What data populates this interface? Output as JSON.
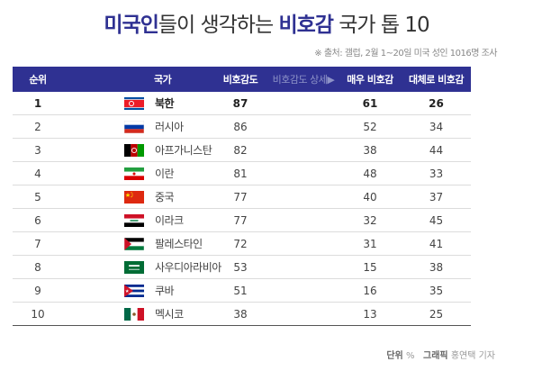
{
  "title": {
    "part1": "미국인",
    "part2": "들이 생각하는 ",
    "part3": "비호감",
    "part4": " 국가 톱 10"
  },
  "source_note": "※ 출처: 갤럽, 2월 1~20일 미국 성인 1016명 조사",
  "columns": {
    "rank": "순위",
    "country": "국가",
    "unfav": "비호감도",
    "detail": "비호감도 상세▶",
    "very": "매우 비호감",
    "mostly": "대체로 비호감"
  },
  "footer": {
    "unit_label": "단위",
    "unit_value": "%",
    "credit_label": "그래픽",
    "credit_value": "홍연택 기자"
  },
  "colors": {
    "header_bg": "#2f3192",
    "title_highlight": "#2f3192"
  },
  "chart_data": {
    "type": "table",
    "title": "미국인들이 생각하는 비호감 국가 톱 10",
    "headers": [
      "순위",
      "국가",
      "비호감도",
      "매우 비호감",
      "대체로 비호감"
    ],
    "rows": [
      {
        "rank": "1",
        "country": "북한",
        "flag": "north-korea-flag",
        "unfav": "87",
        "very": "61",
        "mostly": "26"
      },
      {
        "rank": "2",
        "country": "러시아",
        "flag": "russia-flag",
        "unfav": "86",
        "very": "52",
        "mostly": "34"
      },
      {
        "rank": "3",
        "country": "아프가니스탄",
        "flag": "afghanistan-flag",
        "unfav": "82",
        "very": "38",
        "mostly": "44"
      },
      {
        "rank": "4",
        "country": "이란",
        "flag": "iran-flag",
        "unfav": "81",
        "very": "48",
        "mostly": "33"
      },
      {
        "rank": "5",
        "country": "중국",
        "flag": "china-flag",
        "unfav": "77",
        "very": "40",
        "mostly": "37"
      },
      {
        "rank": "6",
        "country": "이라크",
        "flag": "iraq-flag",
        "unfav": "77",
        "very": "32",
        "mostly": "45"
      },
      {
        "rank": "7",
        "country": "팔레스타인",
        "flag": "palestine-flag",
        "unfav": "72",
        "very": "31",
        "mostly": "41"
      },
      {
        "rank": "8",
        "country": "사우디아라비아",
        "flag": "saudi-arabia-flag",
        "unfav": "53",
        "very": "15",
        "mostly": "38"
      },
      {
        "rank": "9",
        "country": "쿠바",
        "flag": "cuba-flag",
        "unfav": "51",
        "very": "16",
        "mostly": "35"
      },
      {
        "rank": "10",
        "country": "멕시코",
        "flag": "mexico-flag",
        "unfav": "38",
        "very": "13",
        "mostly": "25"
      }
    ]
  }
}
